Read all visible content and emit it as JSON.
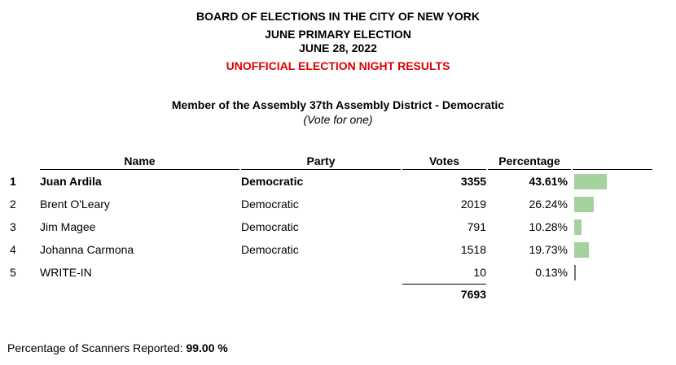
{
  "header": {
    "line1": "BOARD OF ELECTIONS IN THE CITY OF NEW YORK",
    "line2": "JUNE PRIMARY ELECTION",
    "line3": "JUNE 28, 2022",
    "line4": "UNOFFICIAL ELECTION NIGHT RESULTS",
    "line4_color": "#e00000"
  },
  "race": {
    "title": "Member of the Assembly 37th Assembly District - Democratic",
    "subtitle": "(Vote for one)"
  },
  "table": {
    "columns": {
      "name": "Name",
      "party": "Party",
      "votes": "Votes",
      "percentage": "Percentage"
    },
    "rows": [
      {
        "rank": "1",
        "name": "Juan Ardila",
        "party": "Democratic",
        "votes": "3355",
        "percentage": "43.61%",
        "pct": 43.61,
        "winner": true
      },
      {
        "rank": "2",
        "name": "Brent O'Leary",
        "party": "Democratic",
        "votes": "2019",
        "percentage": "26.24%",
        "pct": 26.24
      },
      {
        "rank": "3",
        "name": "Jim Magee",
        "party": "Democratic",
        "votes": "791",
        "percentage": "10.28%",
        "pct": 10.28
      },
      {
        "rank": "4",
        "name": "Johanna Carmona",
        "party": "Democratic",
        "votes": "1518",
        "percentage": "19.73%",
        "pct": 19.73
      },
      {
        "rank": "5",
        "name": "WRITE-IN",
        "party": "",
        "votes": "10",
        "percentage": "0.13%",
        "pct": 0.13
      }
    ],
    "total_votes": "7693",
    "bar_color": "#a5d19e"
  },
  "footer": {
    "label": "Percentage of Scanners Reported: ",
    "value": "99.00 %"
  }
}
